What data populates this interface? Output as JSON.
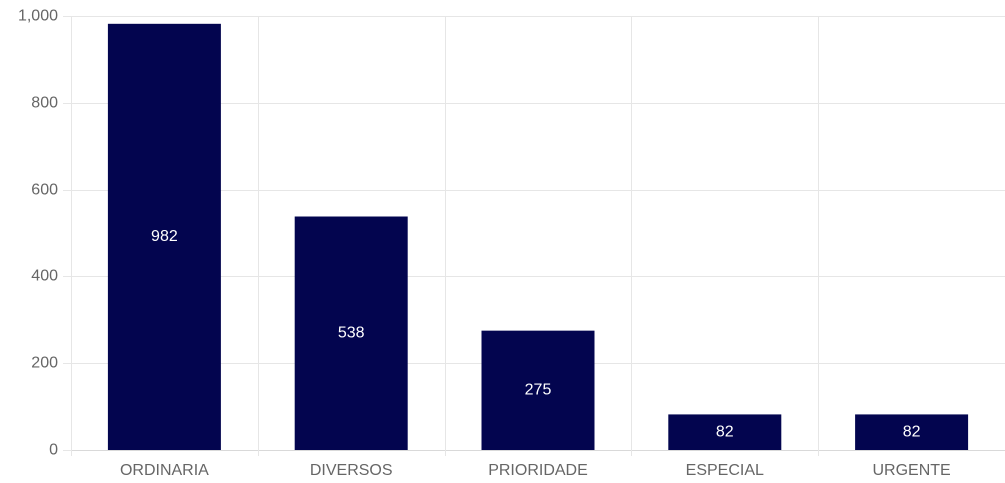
{
  "chart_data": {
    "type": "bar",
    "categories": [
      "ORDINARIA",
      "DIVERSOS",
      "PRIORIDADE",
      "ESPECIAL",
      "URGENTE"
    ],
    "values": [
      982,
      538,
      275,
      82,
      82
    ],
    "data_labels": [
      "982",
      "538",
      "275",
      "82",
      "82"
    ],
    "y_ticks": [
      0,
      200,
      400,
      600,
      800,
      1000
    ],
    "y_tick_labels": [
      "0",
      "200",
      "400",
      "600",
      "800",
      "1,000"
    ],
    "ylim": [
      0,
      1000
    ],
    "grid": true,
    "legend": "none",
    "colors": {
      "bar": "#03054f",
      "grid": "#e6e6e6",
      "tick_text": "#666666",
      "data_label_text": "#ffffff"
    }
  }
}
